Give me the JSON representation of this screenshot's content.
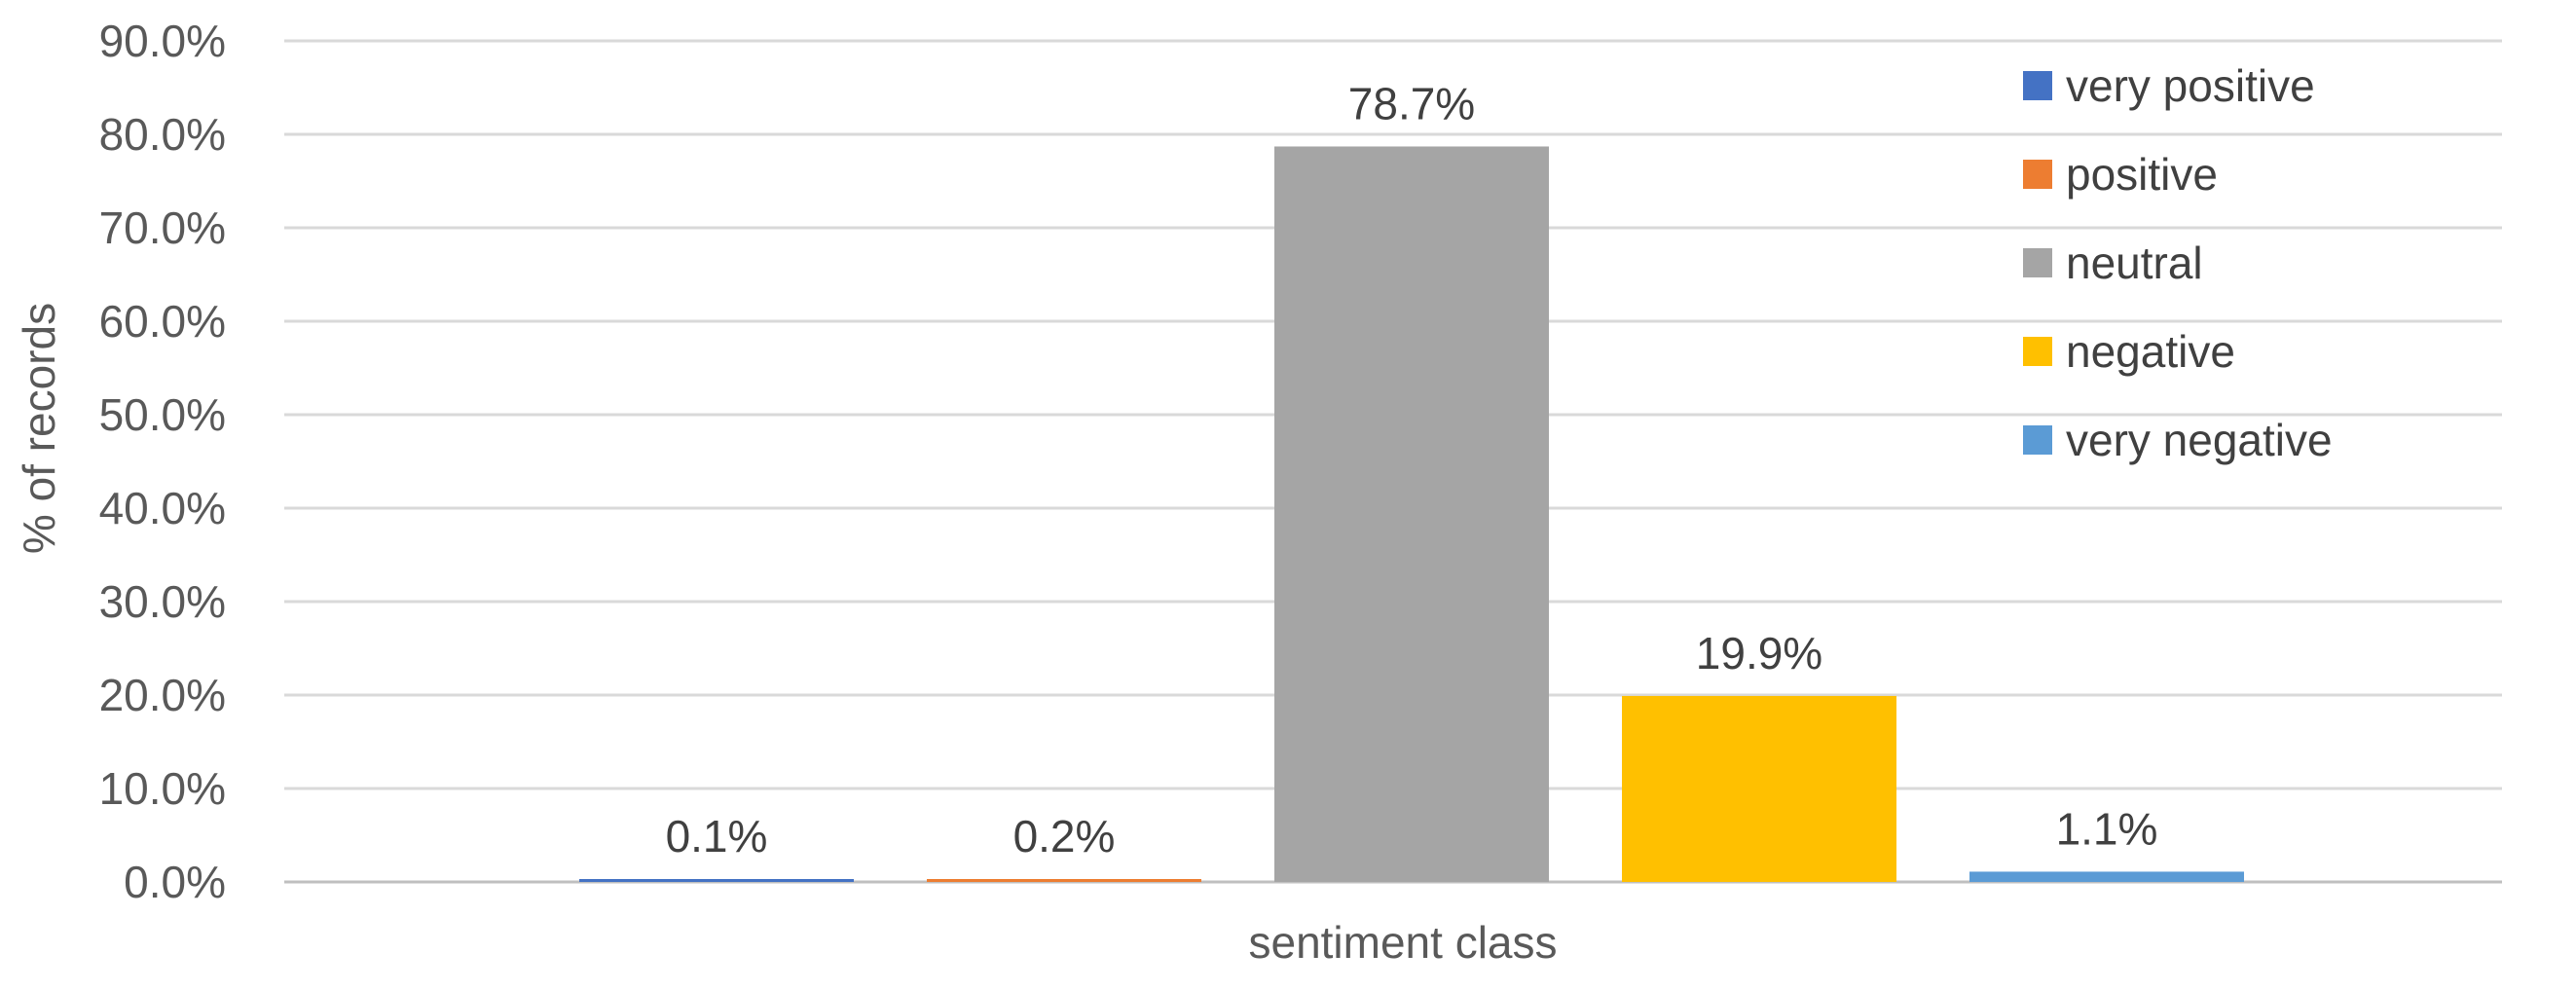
{
  "chart_data": {
    "type": "bar",
    "title": "",
    "xlabel": "sentiment class",
    "ylabel": "%  of records",
    "ylim": [
      0,
      90
    ],
    "y_ticks": [
      "0.0%",
      "10.0%",
      "20.0%",
      "30.0%",
      "40.0%",
      "50.0%",
      "60.0%",
      "70.0%",
      "80.0%",
      "90.0%"
    ],
    "grid": true,
    "legend_position": "top-right",
    "series": [
      {
        "name": "very positive",
        "value": 0.1,
        "label": "0.1%",
        "color": "#4472C4"
      },
      {
        "name": "positive",
        "value": 0.2,
        "label": "0.2%",
        "color": "#ED7D31"
      },
      {
        "name": "neutral",
        "value": 78.7,
        "label": "78.7%",
        "color": "#A5A5A5"
      },
      {
        "name": "negative",
        "value": 19.9,
        "label": "19.9%",
        "color": "#FFC000"
      },
      {
        "name": "very negative",
        "value": 1.1,
        "label": "1.1%",
        "color": "#5B9BD5"
      }
    ]
  }
}
